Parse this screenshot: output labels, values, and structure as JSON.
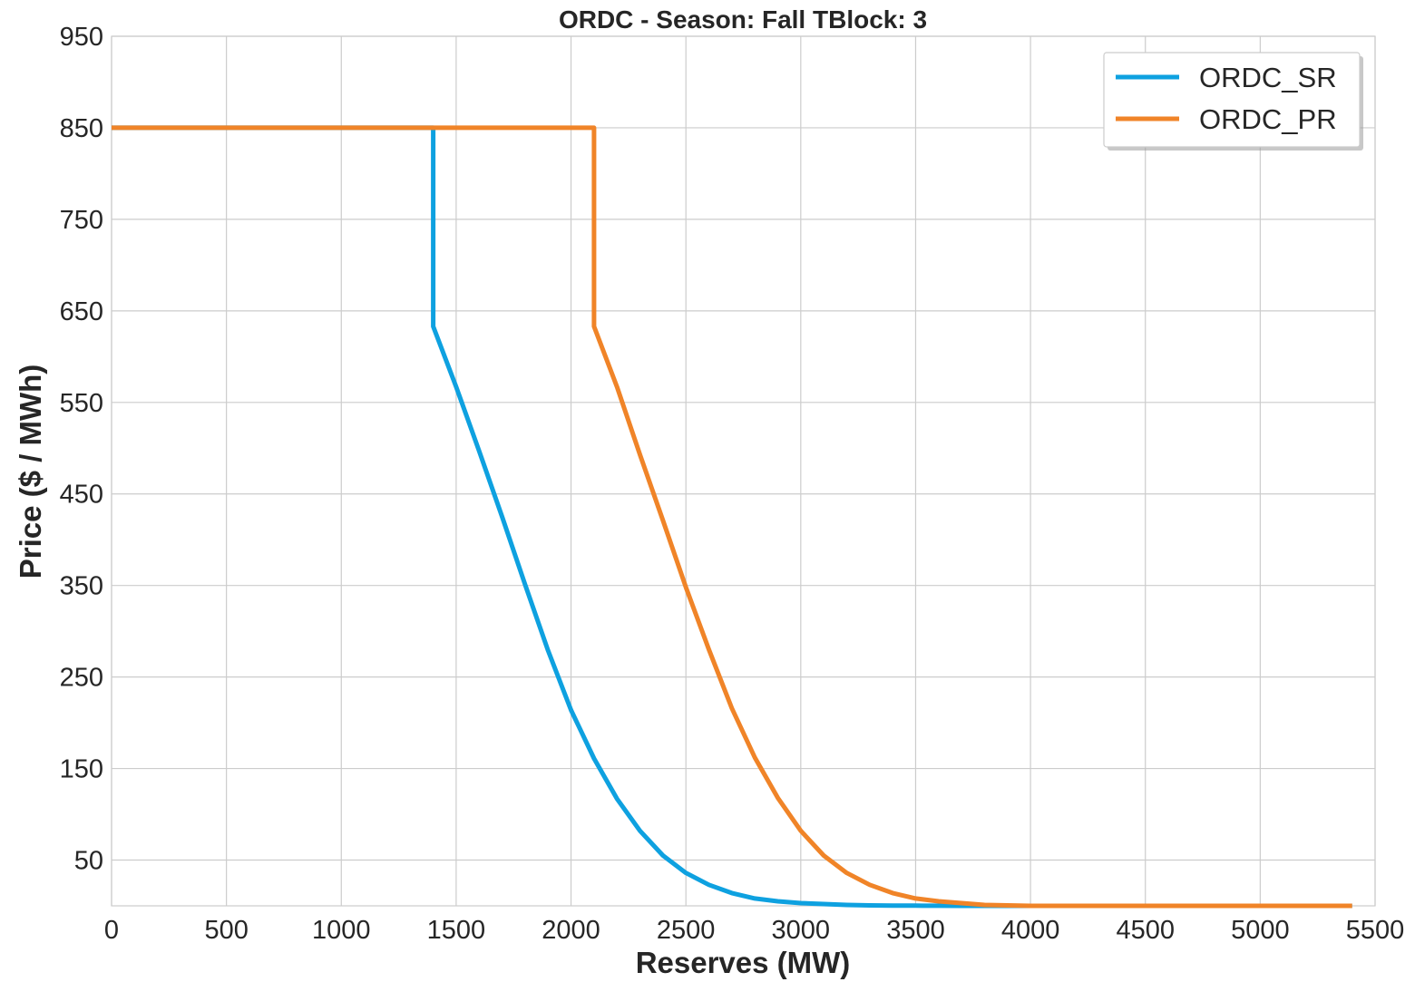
{
  "chart_data": {
    "type": "line",
    "title": "ORDC - Season: Fall TBlock: 3",
    "xlabel": "Reserves (MW)",
    "ylabel": "Price ($ / MWh)",
    "xlim": [
      0,
      5500
    ],
    "ylim": [
      0,
      950
    ],
    "xticks": [
      0,
      500,
      1000,
      1500,
      2000,
      2500,
      3000,
      3500,
      4000,
      4500,
      5000,
      5500
    ],
    "yticks": [
      50,
      150,
      250,
      350,
      450,
      550,
      650,
      750,
      850,
      950
    ],
    "grid": true,
    "legend_position": "top-right",
    "series": [
      {
        "name": "ORDC_SR",
        "color": "#0ea1e0",
        "x": [
          0,
          1400,
          1400,
          1500,
          1600,
          1700,
          1800,
          1900,
          2000,
          2100,
          2200,
          2300,
          2400,
          2500,
          2600,
          2700,
          2800,
          2900,
          3000,
          3100,
          3200,
          3300,
          3400,
          3500,
          3600,
          3700,
          3800,
          3900,
          4000,
          4500,
          5000,
          5400
        ],
        "y": [
          850,
          850,
          633,
          567,
          497,
          425,
          351,
          279,
          214,
          161,
          117,
          82,
          55,
          36,
          23,
          14,
          8,
          5,
          3,
          2,
          1,
          0.5,
          0.3,
          0.2,
          0.1,
          0,
          0,
          0,
          0,
          0,
          0,
          0
        ]
      },
      {
        "name": "ORDC_PR",
        "color": "#f08428",
        "x": [
          0,
          2100,
          2100,
          2200,
          2300,
          2400,
          2500,
          2600,
          2700,
          2800,
          2900,
          3000,
          3100,
          3200,
          3300,
          3400,
          3500,
          3600,
          3700,
          3800,
          3900,
          4000,
          4500,
          5000,
          5400
        ],
        "y": [
          850,
          850,
          633,
          567,
          493,
          421,
          348,
          280,
          216,
          162,
          118,
          82,
          55,
          36,
          23,
          14,
          8,
          5,
          3,
          1,
          0.5,
          0,
          0,
          0,
          0
        ]
      }
    ]
  }
}
